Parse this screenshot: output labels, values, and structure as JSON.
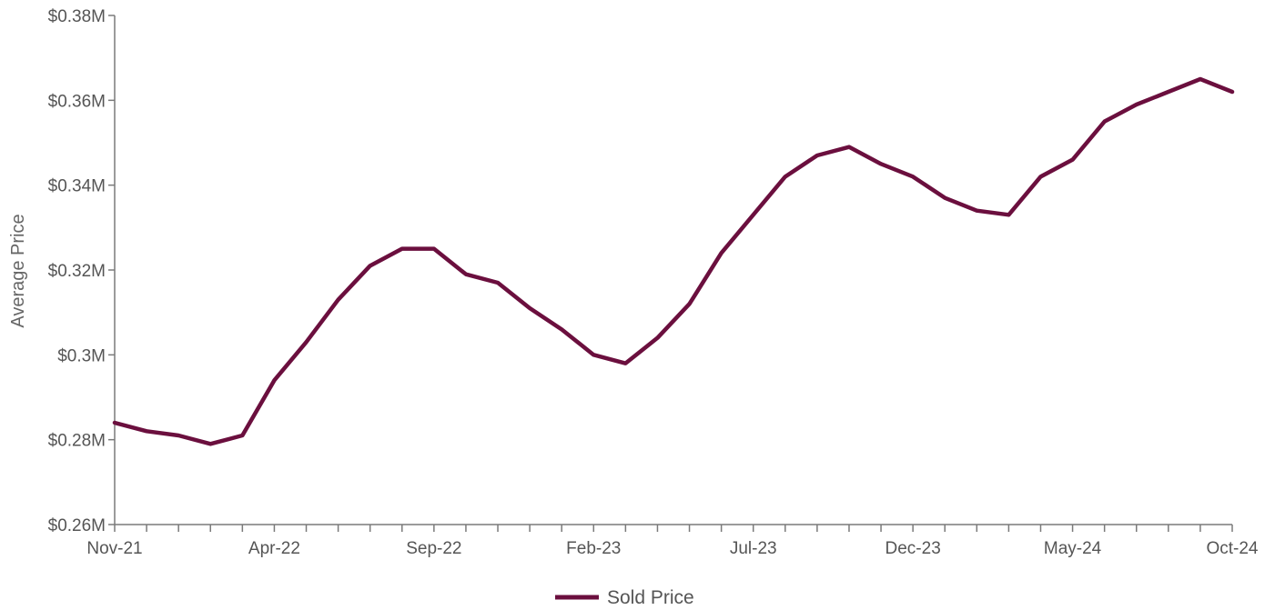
{
  "chart_data": {
    "type": "line",
    "title": "",
    "xlabel": "",
    "ylabel": "Average Price",
    "ylim": [
      0.26,
      0.38
    ],
    "yticks": [
      0.26,
      0.28,
      0.3,
      0.32,
      0.34,
      0.36,
      0.38
    ],
    "ytick_labels": [
      "$0.26M",
      "$0.28M",
      "$0.3M",
      "$0.32M",
      "$0.34M",
      "$0.36M",
      "$0.38M"
    ],
    "xtick_labels": [
      "Nov-21",
      "Apr-22",
      "Sep-22",
      "Feb-23",
      "Jul-23",
      "Dec-23",
      "May-24",
      "Oct-24"
    ],
    "x": [
      "Nov-21",
      "Dec-21",
      "Jan-22",
      "Feb-22",
      "Mar-22",
      "Apr-22",
      "May-22",
      "Jun-22",
      "Jul-22",
      "Aug-22",
      "Sep-22",
      "Oct-22",
      "Nov-22",
      "Dec-22",
      "Jan-23",
      "Feb-23",
      "Mar-23",
      "Apr-23",
      "May-23",
      "Jun-23",
      "Jul-23",
      "Aug-23",
      "Sep-23",
      "Oct-23",
      "Nov-23",
      "Dec-23",
      "Jan-24",
      "Feb-24",
      "Mar-24",
      "Apr-24",
      "May-24",
      "Jun-24",
      "Jul-24",
      "Aug-24",
      "Sep-24",
      "Oct-24"
    ],
    "grid": false,
    "legend_position": "bottom-center",
    "series": [
      {
        "name": "Sold Price",
        "color": "#6b0f3e",
        "values": [
          0.284,
          0.282,
          0.281,
          0.279,
          0.281,
          0.294,
          0.303,
          0.313,
          0.321,
          0.325,
          0.325,
          0.319,
          0.317,
          0.311,
          0.306,
          0.3,
          0.298,
          0.304,
          0.312,
          0.324,
          0.333,
          0.342,
          0.347,
          0.349,
          0.345,
          0.342,
          0.337,
          0.334,
          0.333,
          0.342,
          0.346,
          0.355,
          0.359,
          0.362,
          0.365,
          0.362
        ]
      }
    ]
  }
}
